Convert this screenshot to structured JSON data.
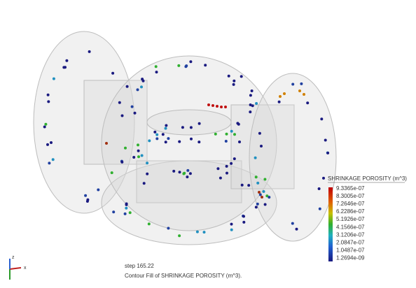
{
  "legend": {
    "title": "SHRINKAGE POROSITY (m^3)",
    "labels": [
      "9.3365e-07",
      "8.3005e-07",
      "7.2646e-07",
      "6.2286e-07",
      "5.1926e-07",
      "4.1566e-07",
      "3.1206e-07",
      "2.0847e-07",
      "1.0487e-07",
      "1.2694e-09"
    ]
  },
  "footer": {
    "step": "step 165.22",
    "caption": "Contour Fill of SHRINKAGE POROSITY (m^3)."
  },
  "axes": {
    "z": "z",
    "x": "x"
  }
}
